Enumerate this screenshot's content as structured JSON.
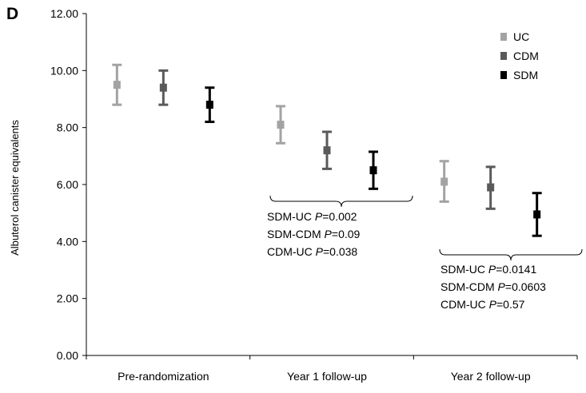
{
  "panel_label": "D",
  "chart_data": {
    "type": "scatter",
    "subtype": "mean-with-error-bars",
    "title": "",
    "xlabel": "",
    "ylabel": "Albuterol canister equivalents",
    "ylim": [
      0,
      12
    ],
    "yticks": [
      "0.00",
      "2.00",
      "4.00",
      "6.00",
      "8.00",
      "10.00",
      "12.00"
    ],
    "grid": false,
    "legend_position": "top-right",
    "categories": [
      "Pre-randomization",
      "Year 1 follow-up",
      "Year 2 follow-up"
    ],
    "series": [
      {
        "name": "UC",
        "color": "#a3a3a3",
        "values": [
          9.5,
          8.1,
          6.1
        ],
        "lower": [
          8.8,
          7.45,
          5.4
        ],
        "upper": [
          10.2,
          8.75,
          6.82
        ]
      },
      {
        "name": "CDM",
        "color": "#5a5a5a",
        "values": [
          9.4,
          7.2,
          5.9
        ],
        "lower": [
          8.8,
          6.55,
          5.15
        ],
        "upper": [
          10.0,
          7.85,
          6.62
        ]
      },
      {
        "name": "SDM",
        "color": "#000000",
        "values": [
          8.8,
          6.5,
          4.95
        ],
        "lower": [
          8.2,
          5.85,
          4.2
        ],
        "upper": [
          9.4,
          7.15,
          5.7
        ]
      }
    ],
    "annotations": [
      {
        "group": "Year 1 follow-up",
        "lines": [
          {
            "pair": "SDM-UC",
            "p_label": "P",
            "p_value": "=0.002"
          },
          {
            "pair": "SDM-CDM",
            "p_label": "P",
            "p_value": "=0.09"
          },
          {
            "pair": "CDM-UC",
            "p_label": "P",
            "p_value": "=0.038"
          }
        ]
      },
      {
        "group": "Year 2 follow-up",
        "lines": [
          {
            "pair": "SDM-UC",
            "p_label": "P",
            "p_value": "=0.0141"
          },
          {
            "pair": "SDM-CDM",
            "p_label": "P",
            "p_value": "=0.0603"
          },
          {
            "pair": "CDM-UC",
            "p_label": "P",
            "p_value": "=0.57"
          }
        ]
      }
    ]
  }
}
